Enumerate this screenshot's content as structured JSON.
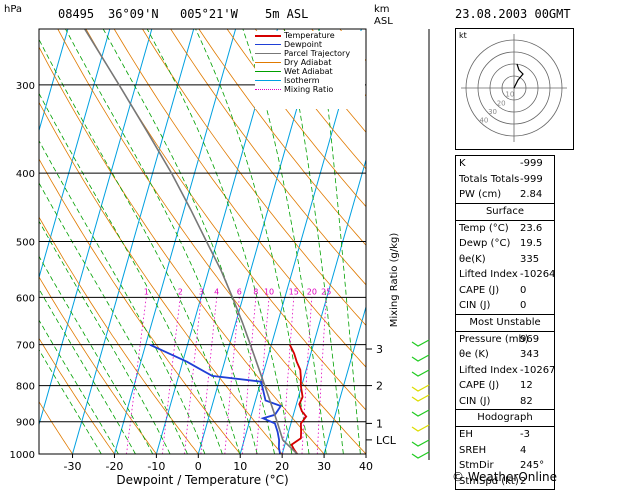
{
  "header": {
    "station": "08495",
    "lat": "36°09'N",
    "lon": "005°21'W",
    "elevation": "5m ASL",
    "datetime": "23.08.2003 00GMT",
    "hpa_unit": "hPa",
    "km_unit": "km",
    "asl_unit": "ASL"
  },
  "legend": {
    "items": [
      {
        "label": "Temperature",
        "color": "#d40000"
      },
      {
        "label": "Dewpoint",
        "color": "#1f3fd6"
      },
      {
        "label": "Parcel Trajectory",
        "color": "#777777"
      },
      {
        "label": "Dry Adiabat",
        "color": "#e07a00"
      },
      {
        "label": "Wet Adiabat",
        "color": "#00a000"
      },
      {
        "label": "Isotherm",
        "color": "#00a0e0"
      },
      {
        "label": "Mixing Ratio",
        "color": "#e000c0"
      }
    ]
  },
  "chart_data": {
    "type": "line",
    "xlabel": "Dewpoint / Temperature (°C)",
    "ylabel": "",
    "x_ticks": [
      "-30",
      "-20",
      "-10",
      "0",
      "10",
      "20",
      "30",
      "40"
    ],
    "pressure_ticks": [
      "300",
      "400",
      "500",
      "600",
      "700",
      "800",
      "900",
      "1000"
    ],
    "pressure_levels": [
      300,
      400,
      500,
      600,
      700,
      800,
      900,
      1000
    ],
    "pressure_range": [
      250,
      1000
    ],
    "temp_range": [
      -38,
      40
    ],
    "skew_deg_per_decade": 48,
    "mixing_ratio_axis_label": "Mixing Ratio (g/kg)",
    "mixing_ratio_labels": [
      "1",
      "2",
      "3",
      "4",
      "6",
      "8",
      "10",
      "15",
      "20",
      "25"
    ],
    "mixing_ratio_values": [
      1,
      2,
      3,
      4,
      6,
      8,
      10,
      15,
      20,
      25
    ],
    "km_labels": [
      {
        "label": "3",
        "p": 710
      },
      {
        "label": "2",
        "p": 800
      },
      {
        "label": "1",
        "p": 905
      },
      {
        "label": "LCL",
        "p": 955
      }
    ],
    "series": [
      {
        "name": "Temperature",
        "color": "#d40000",
        "points": [
          [
            1000,
            23.6
          ],
          [
            985,
            22.5
          ],
          [
            970,
            21.6
          ],
          [
            950,
            23.4
          ],
          [
            930,
            23.0
          ],
          [
            905,
            22.4
          ],
          [
            885,
            23.2
          ],
          [
            870,
            21.8
          ],
          [
            850,
            20.7
          ],
          [
            830,
            21.0
          ],
          [
            815,
            20.4
          ],
          [
            800,
            19.8
          ],
          [
            780,
            19.3
          ],
          [
            760,
            18.6
          ],
          [
            740,
            17.2
          ],
          [
            720,
            16.0
          ],
          [
            700,
            14.4
          ]
        ]
      },
      {
        "name": "Dewpoint",
        "color": "#1f3fd6",
        "points": [
          [
            1000,
            19.5
          ],
          [
            980,
            18.8
          ],
          [
            955,
            18.3
          ],
          [
            930,
            17.4
          ],
          [
            905,
            16.2
          ],
          [
            890,
            13.0
          ],
          [
            880,
            15.6
          ],
          [
            855,
            16.4
          ],
          [
            840,
            12.4
          ],
          [
            805,
            10.8
          ],
          [
            790,
            10.1
          ],
          [
            775,
            -2.0
          ],
          [
            755,
            -6.0
          ],
          [
            740,
            -9.0
          ],
          [
            700,
            -19.0
          ]
        ]
      },
      {
        "name": "Parcel Trajectory",
        "color": "#777777",
        "points": [
          [
            1000,
            23.6
          ],
          [
            955,
            19.2
          ],
          [
            900,
            16.6
          ],
          [
            850,
            14.0
          ],
          [
            800,
            11.2
          ],
          [
            750,
            8.2
          ],
          [
            700,
            5.0
          ],
          [
            650,
            1.5
          ],
          [
            600,
            -2.5
          ],
          [
            550,
            -7.0
          ],
          [
            500,
            -12.5
          ],
          [
            450,
            -18.5
          ],
          [
            400,
            -25.5
          ],
          [
            350,
            -34.0
          ],
          [
            300,
            -44.0
          ],
          [
            250,
            -56.0
          ]
        ]
      }
    ]
  },
  "hodograph": {
    "label": "kt",
    "ring_labels": [
      "10",
      "20",
      "30",
      "40"
    ]
  },
  "indices": [
    {
      "label": "K",
      "value": "-999"
    },
    {
      "label": "Totals Totals",
      "value": "-999"
    },
    {
      "label": "PW (cm)",
      "value": "2.84"
    }
  ],
  "surface": {
    "title": "Surface",
    "rows": [
      {
        "label": "Temp (°C)",
        "value": "23.6"
      },
      {
        "label": "Dewp (°C)",
        "value": "19.5"
      },
      {
        "label": "θe(K)",
        "value": "335"
      },
      {
        "label": "Lifted Index",
        "value": "-10264"
      },
      {
        "label": "CAPE (J)",
        "value": "0"
      },
      {
        "label": "CIN (J)",
        "value": "0"
      }
    ]
  },
  "most_unstable": {
    "title": "Most Unstable",
    "rows": [
      {
        "label": "Pressure (mb)",
        "value": "969"
      },
      {
        "label": "θe (K)",
        "value": "343"
      },
      {
        "label": "Lifted Index",
        "value": "-10267"
      },
      {
        "label": "CAPE (J)",
        "value": "12"
      },
      {
        "label": "CIN (J)",
        "value": "82"
      }
    ]
  },
  "hodograph_table": {
    "title": "Hodograph",
    "rows": [
      {
        "label": "EH",
        "value": "-3"
      },
      {
        "label": "SREH",
        "value": "4"
      },
      {
        "label": "StmDir",
        "value": "245°"
      },
      {
        "label": "StmSpd (kt)",
        "value": "2"
      }
    ]
  },
  "footer": {
    "copyright": "© WeatherOnline"
  }
}
